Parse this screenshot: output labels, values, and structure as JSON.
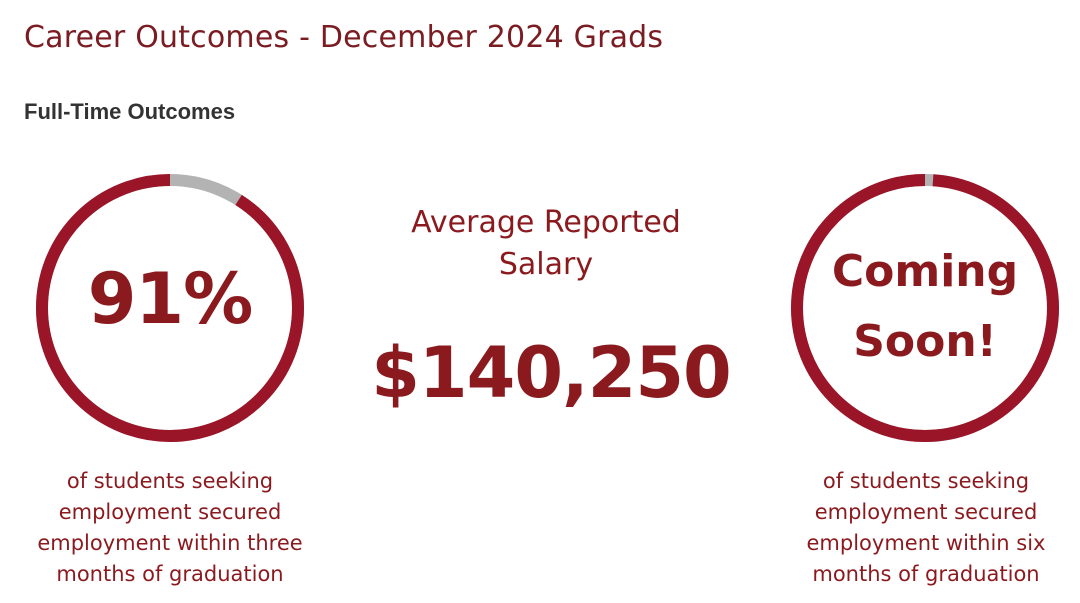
{
  "page": {
    "title": "Career Outcomes - December 2024 Grads",
    "section_title": "Full-Time Outcomes"
  },
  "colors": {
    "title": "#7a1c22",
    "accent": "#8b1a1f",
    "ring": "#9b1528",
    "ring_gap": "#b3b3b3",
    "heading": "#333333"
  },
  "outcome_three_months": {
    "value_label": "91%",
    "filled_fraction": 0.91,
    "caption_lines": [
      "of students seeking",
      "employment secured",
      "employment within three",
      "months of graduation"
    ]
  },
  "salary": {
    "label_lines": [
      "Average Reported",
      "Salary"
    ],
    "value": "$140,250"
  },
  "outcome_six_months": {
    "value_lines": [
      "Coming",
      "Soon!"
    ],
    "filled_fraction": 0.99,
    "caption_lines": [
      "of students seeking",
      "employment secured",
      "employment within six",
      "months of graduation"
    ]
  }
}
